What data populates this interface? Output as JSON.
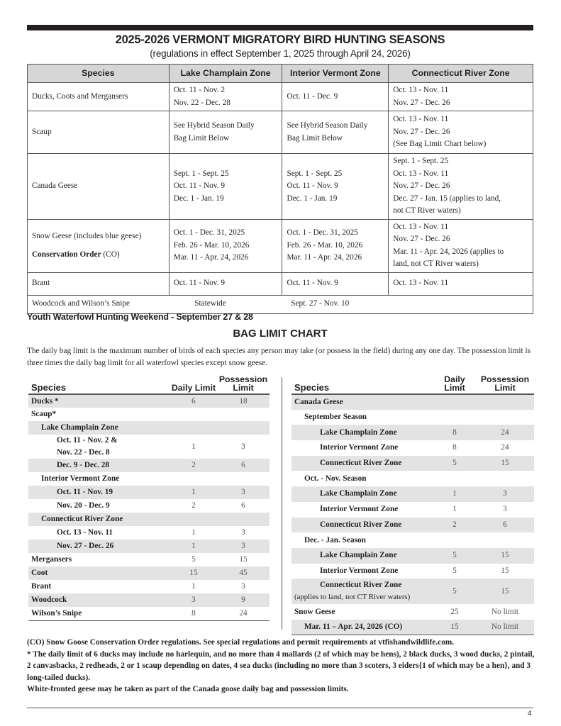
{
  "title": "2025-2026 VERMONT MIGRATORY BIRD HUNTING SEASONS",
  "subtitle": "(regulations in effect September 1, 2025 through April 24, 2026)",
  "seasons": {
    "headers": [
      "Species",
      "Lake Champlain Zone",
      "Interior Vermont Zone",
      "Connecticut River Zone"
    ],
    "rows": [
      {
        "species": "Ducks, Coots and Mergansers",
        "lcz": [
          "Oct. 11 - Nov. 2",
          "Nov. 22 - Dec. 28"
        ],
        "ivz": [
          "Oct. 11 - Dec. 9"
        ],
        "crz": [
          "Oct. 13 - Nov. 11",
          "Nov. 27 - Dec. 26"
        ]
      },
      {
        "species": "Scaup",
        "lcz": [
          "See Hybrid Season Daily",
          "Bag Limit Below"
        ],
        "ivz": [
          "See Hybrid Season Daily",
          "Bag Limit Below"
        ],
        "crz": [
          "Oct. 13 - Nov. 11",
          "Nov. 27 - Dec. 26",
          "(See Bag Limit Chart below)"
        ]
      },
      {
        "species": "Canada Geese",
        "lcz": [
          "Sept. 1 - Sept. 25",
          "Oct. 11 - Nov. 9",
          "Dec. 1 -  Jan. 19"
        ],
        "ivz": [
          "Sept. 1 - Sept. 25",
          "Oct. 11 - Nov. 9",
          "Dec. 1 -  Jan. 19"
        ],
        "crz": [
          "Sept. 1 - Sept. 25",
          "Oct. 13 - Nov. 11",
          "Nov. 27 - Dec. 26",
          "Dec. 27 - Jan. 15 (applies to land,",
          "not CT River waters)"
        ]
      },
      {
        "species": "Snow Geese (includes blue geese)",
        "species2": "Conservation Order",
        "species2b": " (CO)",
        "lcz": [
          "Oct. 1 - Dec. 31, 2025",
          "Feb. 26 - Mar. 10, 2026",
          "Mar. 11 - Apr. 24, 2026"
        ],
        "ivz": [
          "Oct. 1 - Dec. 31, 2025",
          "Feb. 26 - Mar. 10, 2026",
          "Mar. 11 - Apr. 24, 2026"
        ],
        "crz": [
          "Oct. 13 - Nov. 11",
          "Nov. 27 - Dec. 26",
          "Mar. 11 - Apr. 24, 2026 (applies to",
          "land, not CT River waters)"
        ]
      },
      {
        "species": "Brant",
        "lcz": [
          "Oct. 11 - Nov. 9"
        ],
        "ivz": [
          "Oct. 11 - Nov. 9"
        ],
        "crz": [
          "Oct. 13 - Nov. 11"
        ]
      },
      {
        "species": "Woodcock and Wilson’s Snipe",
        "statewide": "Statewide",
        "dates": "Sept. 27 - Nov. 10"
      }
    ]
  },
  "youth": "Youth Waterfowl Hunting Weekend - September 27 & 28",
  "bag_title": "BAG LIMIT CHART",
  "bag_intro": "The daily bag limit is the maximum number of birds of each species any person may take (or possess in the field) during any one day. The possession limit is three times the daily bag limit for all waterfowl species except snow geese.",
  "bag_headers": {
    "species": "Species",
    "daily": "Daily Limit",
    "possession": "Possession Limit"
  },
  "left_rows": [
    {
      "label": "Ducks *",
      "d": "6",
      "p": "18",
      "lvl": 0
    },
    {
      "label": "Scaup*",
      "d": "",
      "p": "",
      "lvl": 0
    },
    {
      "label": "Lake Champlain Zone",
      "d": "",
      "p": "",
      "lvl": 1
    },
    {
      "label": "Oct. 11 - Nov. 2 &",
      "label2": "Nov. 22 - Dec. 8",
      "d": "1",
      "p": "3",
      "lvl": 2
    },
    {
      "label": "Dec. 9 - Dec. 28",
      "d": "2",
      "p": "6",
      "lvl": 2
    },
    {
      "label": "Interior Vermont Zone",
      "d": "",
      "p": "",
      "lvl": 1
    },
    {
      "label": "Oct. 11 - Nov. 19",
      "d": "1",
      "p": "3",
      "lvl": 2
    },
    {
      "label": "Nov. 20 - Dec. 9",
      "d": "2",
      "p": "6",
      "lvl": 2
    },
    {
      "label": "Connecticut River Zone",
      "d": "",
      "p": "",
      "lvl": 1
    },
    {
      "label": "Oct. 13 - Nov. 11",
      "d": "1",
      "p": "3",
      "lvl": 2
    },
    {
      "label": "Nov. 27 - Dec. 26",
      "d": "1",
      "p": "3",
      "lvl": 2
    },
    {
      "label": "Mergansers",
      "d": "5",
      "p": "15",
      "lvl": 0
    },
    {
      "label": "Coot",
      "d": "15",
      "p": "45",
      "lvl": 0
    },
    {
      "label": "Brant",
      "d": "1",
      "p": "3",
      "lvl": 0
    },
    {
      "label": "Woodcock",
      "d": "3",
      "p": "9",
      "lvl": 0
    },
    {
      "label": "Wilson’s Snipe",
      "d": "8",
      "p": "24",
      "lvl": 0
    }
  ],
  "right_rows": [
    {
      "label": "Canada Geese",
      "d": "",
      "p": "",
      "lvl": 0
    },
    {
      "label": "September Season",
      "d": "",
      "p": "",
      "lvl": 1
    },
    {
      "label": "Lake Champlain Zone",
      "d": "8",
      "p": "24",
      "lvl": 2
    },
    {
      "label": "Interior Vermont Zone",
      "d": "8",
      "p": "24",
      "lvl": 2
    },
    {
      "label": "Connecticut River Zone",
      "d": "5",
      "p": "15",
      "lvl": 2
    },
    {
      "label": "Oct. - Nov. Season",
      "d": "",
      "p": "",
      "lvl": 1
    },
    {
      "label": "Lake Champlain Zone",
      "d": "1",
      "p": "3",
      "lvl": 2
    },
    {
      "label": "Interior Vermont Zone",
      "d": "1",
      "p": "3",
      "lvl": 2
    },
    {
      "label": "Connecticut River Zone",
      "d": "2",
      "p": "6",
      "lvl": 2
    },
    {
      "label": "Dec. - Jan. Season",
      "d": "",
      "p": "",
      "lvl": 1
    },
    {
      "label": "Lake Champlain Zone",
      "d": "5",
      "p": "15",
      "lvl": 2
    },
    {
      "label": "Interior Vermont Zone",
      "d": "5",
      "p": "15",
      "lvl": 2
    },
    {
      "label": "Connecticut River Zone",
      "label2": "(applies to land, not CT River waters)",
      "d": "5",
      "p": "15",
      "lvl": 2
    },
    {
      "label": "Snow Geese",
      "d": "25",
      "p": "No limit",
      "lvl": 0
    },
    {
      "label": "Mar. 11 – Apr. 24, 2026 (CO)",
      "d": "15",
      "p": "No limit",
      "lvl": 1
    }
  ],
  "notes": [
    "(CO) Snow Goose Conservation Order regulations. See special regulations and permit requirements at vtfishandwildlife.com.",
    "*  The daily limit of 6 ducks may include no harlequin, and no more than 4 mallards (2 of which may be hens), 2 black ducks, 3 wood ducks, 2 pintail, 2 canvasbacks, 2 redheads, 2 or 1 scaup depending on dates, 4 sea ducks (including no more than 3 scoters, 3 eiders{1 of which may be a hen}, and 3 long-tailed ducks).",
    "White-fronted geese may be taken as part of the Canada goose daily bag and possession limits."
  ],
  "page_number": "4"
}
